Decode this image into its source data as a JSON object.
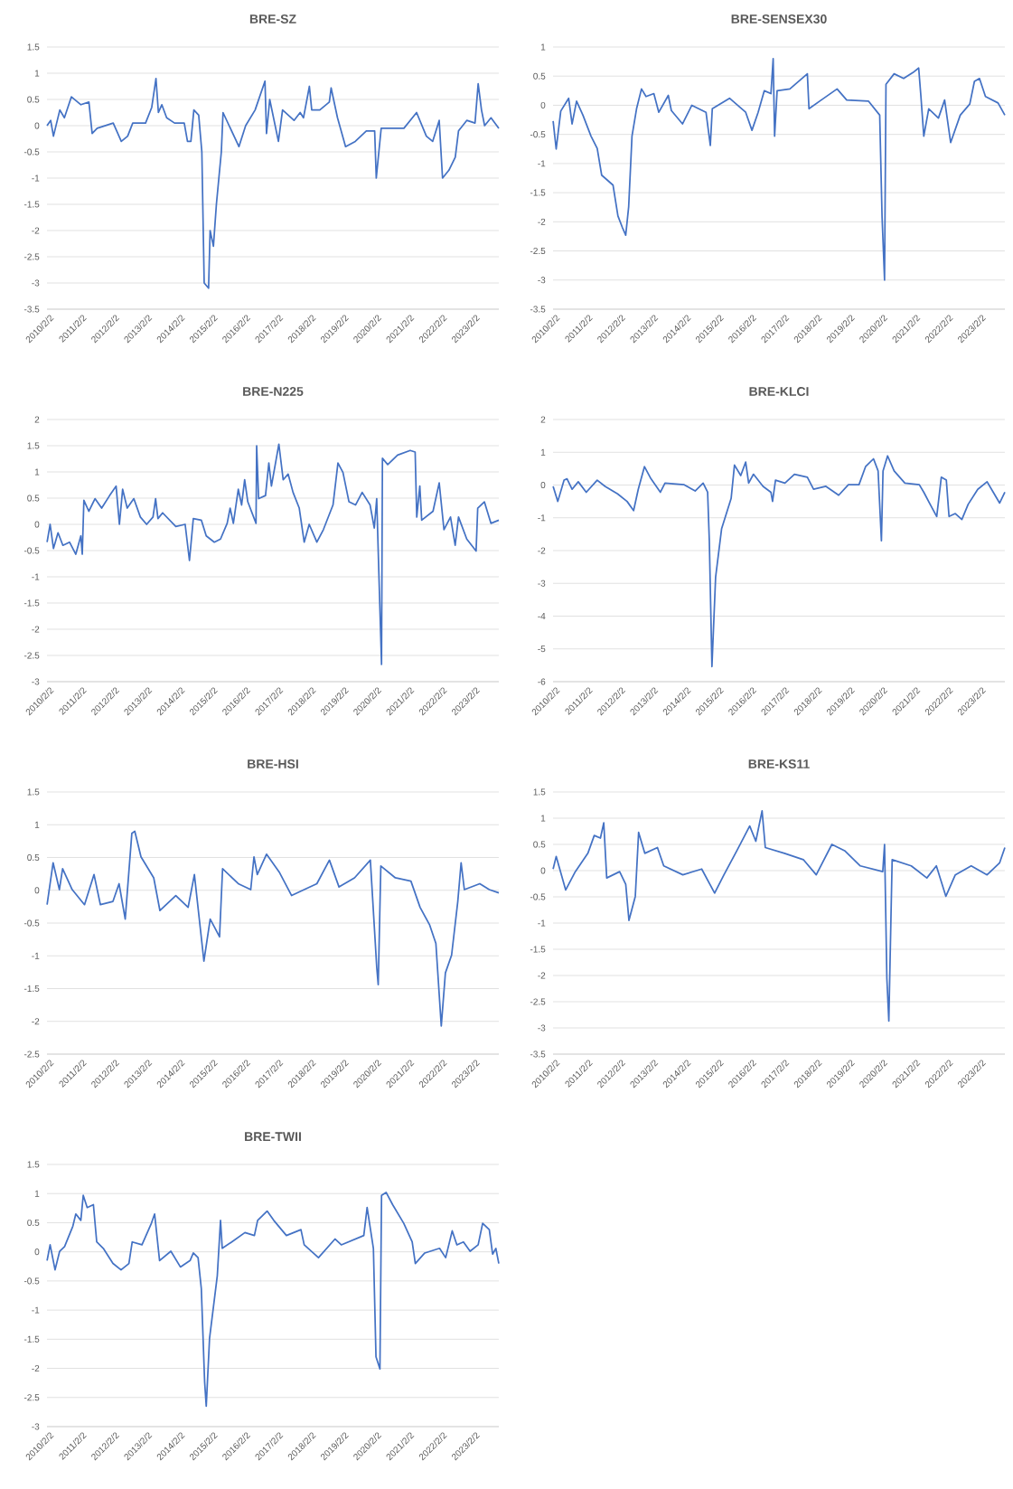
{
  "chart_data": [
    {
      "type": "line",
      "title": "BRE-SZ",
      "grid": "y",
      "xlim": [
        "2010-02-02",
        "2023-11-17"
      ],
      "ylim": [
        -3.5,
        1.5
      ],
      "yticks": [
        -3.5,
        -3,
        -2.5,
        -2,
        -1.5,
        -1,
        -0.5,
        0,
        0.5,
        1,
        1.5
      ],
      "xticks": [
        {
          "value": "2010-02-02",
          "label": "2010/2/2"
        },
        {
          "value": "2011-02-02",
          "label": "2011/2/2"
        },
        {
          "value": "2012-02-02",
          "label": "2012/2/2"
        },
        {
          "value": "2013-02-02",
          "label": "2013/2/2"
        },
        {
          "value": "2014-02-02",
          "label": "2014/2/2"
        },
        {
          "value": "2015-02-02",
          "label": "2015/2/2"
        },
        {
          "value": "2016-02-02",
          "label": "2016/2/2"
        },
        {
          "value": "2017-02-02",
          "label": "2017/2/2"
        },
        {
          "value": "2018-02-02",
          "label": "2018/2/2"
        },
        {
          "value": "2019-02-02",
          "label": "2019/2/2"
        },
        {
          "value": "2020-02-02",
          "label": "2020/2/2"
        },
        {
          "value": "2021-02-02",
          "label": "2021/2/2"
        },
        {
          "value": "2022-02-02",
          "label": "2022/2/2"
        },
        {
          "value": "2023-02-02",
          "label": "2023/2/2"
        }
      ],
      "x": [
        "2010-02-02",
        "2010-03-15",
        "2010-04-15",
        "2010-06-25",
        "2010-08-15",
        "2010-11-01",
        "2011-02-15",
        "2011-05-15",
        "2011-06-20",
        "2011-08-15",
        "2012-02-10",
        "2012-05-10",
        "2012-07-20",
        "2012-09-15",
        "2013-02-05",
        "2013-04-15",
        "2013-06-01",
        "2013-06-28",
        "2013-08-05",
        "2013-09-28",
        "2013-12-25",
        "2014-04-12",
        "2014-05-18",
        "2014-06-25",
        "2014-07-28",
        "2014-09-20",
        "2014-10-25",
        "2014-11-20",
        "2015-01-08",
        "2015-01-25",
        "2015-03-03",
        "2015-04-05",
        "2015-05-30",
        "2015-06-18",
        "2015-12-12",
        "2016-02-25",
        "2016-06-10",
        "2016-09-28",
        "2016-10-15",
        "2016-11-20",
        "2017-02-25",
        "2017-04-12",
        "2017-08-18",
        "2017-10-25",
        "2017-12-01",
        "2018-02-05",
        "2018-03-03",
        "2018-06-01",
        "2018-09-15",
        "2018-10-05",
        "2018-12-15",
        "2019-03-15",
        "2019-07-01",
        "2019-11-01",
        "2020-02-02",
        "2020-02-20",
        "2020-04-15",
        "2020-12-25",
        "2021-05-15",
        "2021-09-01",
        "2021-11-10",
        "2022-01-22",
        "2022-02-28",
        "2022-05-10",
        "2022-07-20",
        "2022-08-25",
        "2022-11-25",
        "2023-02-25",
        "2023-04-01",
        "2023-05-08",
        "2023-06-12",
        "2023-08-22",
        "2023-11-17"
      ],
      "series": [
        {
          "color": "#4472c4",
          "values": [
            0,
            0.1,
            -0.2,
            0.3,
            0.15,
            0.55,
            0.4,
            0.45,
            -0.15,
            -0.05,
            0.05,
            -0.3,
            -0.2,
            0.05,
            0.05,
            0.35,
            0.9,
            0.25,
            0.4,
            0.15,
            0.05,
            0.05,
            -0.3,
            -0.3,
            0.3,
            0.2,
            -0.5,
            -3,
            -3.1,
            -2,
            -2.3,
            -1.5,
            -0.5,
            0.25,
            -0.4,
            0,
            0.3,
            0.85,
            -0.15,
            0.5,
            -0.3,
            0.3,
            0.1,
            0.25,
            0.15,
            0.75,
            0.3,
            0.3,
            0.45,
            0.72,
            0.15,
            -0.4,
            -0.3,
            -0.1,
            -0.1,
            -1,
            -0.05,
            -0.05,
            0.25,
            -0.2,
            -0.3,
            0.1,
            -1,
            -0.85,
            -0.6,
            -0.1,
            0.1,
            0.05,
            0.8,
            0.3,
            0,
            0.15,
            -0.05
          ]
        }
      ]
    },
    {
      "type": "line",
      "title": "BRE-SENSEX30",
      "grid": "y",
      "xlim": [
        "2010-02-02",
        "2023-11-17"
      ],
      "ylim": [
        -3.5,
        1
      ],
      "yticks": [
        -3.5,
        -3,
        -2.5,
        -2,
        -1.5,
        -1,
        -0.5,
        0,
        0.5,
        1
      ],
      "xticks": [
        {
          "value": "2010-02-02",
          "label": "2010/2/2"
        },
        {
          "value": "2011-02-02",
          "label": "2011/2/2"
        },
        {
          "value": "2012-02-02",
          "label": "2012/2/2"
        },
        {
          "value": "2013-02-02",
          "label": "2013/2/2"
        },
        {
          "value": "2014-02-02",
          "label": "2014/2/2"
        },
        {
          "value": "2015-02-02",
          "label": "2015/2/2"
        },
        {
          "value": "2016-02-02",
          "label": "2016/2/2"
        },
        {
          "value": "2017-02-02",
          "label": "2017/2/2"
        },
        {
          "value": "2018-02-02",
          "label": "2018/2/2"
        },
        {
          "value": "2019-02-02",
          "label": "2019/2/2"
        },
        {
          "value": "2020-02-02",
          "label": "2020/2/2"
        },
        {
          "value": "2021-02-02",
          "label": "2021/2/2"
        },
        {
          "value": "2022-02-02",
          "label": "2022/2/2"
        },
        {
          "value": "2023-02-02",
          "label": "2023/2/2"
        }
      ],
      "x": [
        "2010-02-03",
        "2010-03-09",
        "2010-04-29",
        "2010-07-26",
        "2010-09-02",
        "2010-10-22",
        "2011-01-01",
        "2011-04-01",
        "2011-06-09",
        "2011-07-29",
        "2011-12-02",
        "2012-01-26",
        "2012-03-16",
        "2012-04-22",
        "2012-05-25",
        "2012-07-01",
        "2012-08-21",
        "2012-10-15",
        "2012-12-05",
        "2013-03-02",
        "2013-04-26",
        "2013-08-10",
        "2013-09-13",
        "2014-01-15",
        "2014-04-29",
        "2014-10-04",
        "2014-11-21",
        "2014-12-13",
        "2015-06-23",
        "2015-12-20",
        "2016-02-28",
        "2016-05-07",
        "2016-07-15",
        "2016-09-27",
        "2016-10-22",
        "2016-11-07",
        "2016-12-05",
        "2017-04-26",
        "2017-11-07",
        "2017-11-25",
        "2018-04-11",
        "2018-10-04",
        "2019-01-19",
        "2019-09-20",
        "2020-01-22",
        "2020-02-17",
        "2020-03-16",
        "2020-04-01",
        "2020-07-01",
        "2020-10-15",
        "2021-01-26",
        "2021-04-01",
        "2021-04-26",
        "2021-05-28",
        "2021-07-22",
        "2021-11-07",
        "2022-01-15",
        "2022-03-23",
        "2022-07-08",
        "2022-10-22",
        "2022-12-13",
        "2023-02-07",
        "2023-04-15",
        "2023-09-02",
        "2023-11-17"
      ],
      "series": [
        {
          "color": "#4472c4",
          "values": [
            -0.27,
            -0.75,
            -0.1,
            0.12,
            -0.32,
            0.07,
            -0.17,
            -0.53,
            -0.74,
            -1.2,
            -1.37,
            -1.9,
            -2.1,
            -2.23,
            -1.74,
            -0.53,
            -0.06,
            0.28,
            0.15,
            0.2,
            -0.12,
            0.17,
            -0.09,
            -0.32,
            0,
            -0.12,
            -0.69,
            -0.06,
            0.12,
            -0.12,
            -0.43,
            -0.12,
            0.25,
            0.2,
            0.8,
            -0.53,
            0.25,
            0.28,
            0.54,
            -0.06,
            0.09,
            0.28,
            0.09,
            0.07,
            -0.17,
            -1.9,
            -3,
            0.36,
            0.54,
            0.46,
            0.56,
            0.64,
            0.15,
            -0.53,
            -0.06,
            -0.22,
            0.09,
            -0.64,
            -0.17,
            0.02,
            0.41,
            0.46,
            0.15,
            0.04,
            -0.17
          ]
        }
      ]
    },
    {
      "type": "line",
      "title": "BRE-N225",
      "grid": "y",
      "xlim": [
        "2010-02-02",
        "2023-11-17"
      ],
      "ylim": [
        -3,
        2
      ],
      "yticks": [
        -3,
        -2.5,
        -2,
        -1.5,
        -1,
        -0.5,
        0,
        0.5,
        1,
        1.5,
        2
      ],
      "xticks": [
        {
          "value": "2010-02-02",
          "label": "2010/2/2"
        },
        {
          "value": "2011-02-02",
          "label": "2011/2/2"
        },
        {
          "value": "2012-02-02",
          "label": "2012/2/2"
        },
        {
          "value": "2013-02-02",
          "label": "2013/2/2"
        },
        {
          "value": "2014-02-02",
          "label": "2014/2/2"
        },
        {
          "value": "2015-02-02",
          "label": "2015/2/2"
        },
        {
          "value": "2016-02-02",
          "label": "2016/2/2"
        },
        {
          "value": "2017-02-02",
          "label": "2017/2/2"
        },
        {
          "value": "2018-02-02",
          "label": "2018/2/2"
        },
        {
          "value": "2019-02-02",
          "label": "2019/2/2"
        },
        {
          "value": "2020-02-02",
          "label": "2020/2/2"
        },
        {
          "value": "2021-02-02",
          "label": "2021/2/2"
        },
        {
          "value": "2022-02-02",
          "label": "2022/2/2"
        },
        {
          "value": "2023-02-02",
          "label": "2023/2/2"
        }
      ],
      "x": [
        "2010-02-03",
        "2010-03-09",
        "2010-04-15",
        "2010-06-05",
        "2010-07-29",
        "2010-10-11",
        "2010-12-20",
        "2011-02-14",
        "2011-03-02",
        "2011-03-20",
        "2011-05-14",
        "2011-07-22",
        "2011-10-04",
        "2012-01-01",
        "2012-03-13",
        "2012-04-19",
        "2012-05-25",
        "2012-07-15",
        "2012-09-27",
        "2012-12-09",
        "2013-02-17",
        "2013-04-29",
        "2013-05-28",
        "2013-06-23",
        "2013-08-14",
        "2014-01-08",
        "2014-04-22",
        "2014-06-09",
        "2014-07-22",
        "2014-10-19",
        "2014-12-13",
        "2015-03-13",
        "2015-05-21",
        "2015-08-03",
        "2015-09-05",
        "2015-10-11",
        "2015-12-05",
        "2016-01-11",
        "2016-02-14",
        "2016-03-20",
        "2016-06-20",
        "2016-06-27",
        "2016-07-19",
        "2016-10-04",
        "2016-11-10",
        "2016-12-09",
        "2017-03-02",
        "2017-04-19",
        "2017-06-13",
        "2017-08-07",
        "2017-10-15",
        "2017-12-09",
        "2018-02-03",
        "2018-04-29",
        "2018-07-11",
        "2018-10-26",
        "2018-12-20",
        "2019-02-14",
        "2019-04-22",
        "2019-07-04",
        "2019-09-16",
        "2019-12-13",
        "2020-01-29",
        "2020-02-25",
        "2020-03-20",
        "2020-04-19",
        "2020-04-29",
        "2020-06-27",
        "2020-10-15",
        "2021-03-05",
        "2021-04-29",
        "2021-05-17",
        "2021-06-20",
        "2021-07-11",
        "2021-11-14",
        "2022-01-22",
        "2022-03-16",
        "2022-05-28",
        "2022-07-19",
        "2022-08-25",
        "2022-11-25",
        "2023-03-09",
        "2023-03-27",
        "2023-06-09",
        "2023-08-21",
        "2023-11-17"
      ],
      "series": [
        {
          "color": "#4472c4",
          "values": [
            -0.34,
            0,
            -0.46,
            -0.16,
            -0.4,
            -0.34,
            -0.57,
            -0.22,
            -0.57,
            0.46,
            0.25,
            0.49,
            0.31,
            0.55,
            0.73,
            0,
            0.67,
            0.31,
            0.49,
            0.14,
            0,
            0.14,
            0.49,
            0.11,
            0.22,
            -0.04,
            0,
            -0.69,
            0.11,
            0.08,
            -0.22,
            -0.34,
            -0.28,
            0.02,
            0.31,
            0.02,
            0.67,
            0.37,
            0.85,
            0.43,
            0.02,
            1.5,
            0.49,
            0.55,
            1.17,
            0.73,
            1.53,
            0.85,
            0.96,
            0.61,
            0.31,
            -0.34,
            0,
            -0.34,
            -0.1,
            0.37,
            1.17,
            0.99,
            0.43,
            0.37,
            0.61,
            0.37,
            -0.07,
            0.49,
            -0.93,
            -2.67,
            1.26,
            1.14,
            1.32,
            1.41,
            1.38,
            0.14,
            0.73,
            0.08,
            0.25,
            0.79,
            -0.1,
            0.14,
            -0.4,
            0.14,
            -0.28,
            -0.51,
            0.31,
            0.43,
            0.02,
            0.08
          ]
        }
      ]
    },
    {
      "type": "line",
      "title": "BRE-KLCI",
      "grid": "y",
      "xlim": [
        "2010-02-02",
        "2023-11-17"
      ],
      "ylim": [
        -6,
        2
      ],
      "yticks": [
        -6,
        -5,
        -4,
        -3,
        -2,
        -1,
        0,
        1,
        2
      ],
      "xticks": [
        {
          "value": "2010-02-02",
          "label": "2010/2/2"
        },
        {
          "value": "2011-02-02",
          "label": "2011/2/2"
        },
        {
          "value": "2012-02-02",
          "label": "2012/2/2"
        },
        {
          "value": "2013-02-02",
          "label": "2013/2/2"
        },
        {
          "value": "2014-02-02",
          "label": "2014/2/2"
        },
        {
          "value": "2015-02-02",
          "label": "2015/2/2"
        },
        {
          "value": "2016-02-02",
          "label": "2016/2/2"
        },
        {
          "value": "2017-02-02",
          "label": "2017/2/2"
        },
        {
          "value": "2018-02-02",
          "label": "2018/2/2"
        },
        {
          "value": "2019-02-02",
          "label": "2019/2/2"
        },
        {
          "value": "2020-02-02",
          "label": "2020/2/2"
        },
        {
          "value": "2021-02-02",
          "label": "2021/2/2"
        },
        {
          "value": "2022-02-02",
          "label": "2022/2/2"
        },
        {
          "value": "2023-02-02",
          "label": "2023/2/2"
        }
      ],
      "x": [
        "2010-02-03",
        "2010-03-27",
        "2010-06-05",
        "2010-07-08",
        "2010-09-02",
        "2010-11-10",
        "2011-02-07",
        "2011-06-09",
        "2011-09-05",
        "2012-01-22",
        "2012-05-07",
        "2012-07-19",
        "2012-09-09",
        "2012-11-17",
        "2013-01-29",
        "2013-05-14",
        "2013-07-04",
        "2014-02-03",
        "2014-06-05",
        "2014-09-02",
        "2014-10-22",
        "2014-11-10",
        "2014-12-09",
        "2015-01-01",
        "2015-01-19",
        "2015-03-27",
        "2015-07-11",
        "2015-08-17",
        "2015-10-26",
        "2015-12-20",
        "2016-01-22",
        "2016-03-16",
        "2016-07-01",
        "2016-09-27",
        "2016-10-15",
        "2016-11-17",
        "2017-03-02",
        "2017-06-16",
        "2017-11-07",
        "2018-01-15",
        "2018-06-02",
        "2018-10-22",
        "2019-02-07",
        "2019-06-05",
        "2019-08-17",
        "2019-11-14",
        "2020-01-04",
        "2020-02-10",
        "2020-02-28",
        "2020-04-19",
        "2020-07-01",
        "2020-10-29",
        "2021-04-08",
        "2021-05-28",
        "2021-08-07",
        "2021-10-19",
        "2021-12-09",
        "2022-02-03",
        "2022-03-05",
        "2022-05-14",
        "2022-07-26",
        "2022-10-04",
        "2023-01-19",
        "2023-05-03",
        "2023-07-11",
        "2023-09-20",
        "2023-11-17"
      ],
      "series": [
        {
          "color": "#4472c4",
          "values": [
            -0.04,
            -0.5,
            0.15,
            0.19,
            -0.13,
            0.1,
            -0.22,
            0.15,
            -0.04,
            -0.27,
            -0.5,
            -0.78,
            -0.13,
            0.56,
            0.19,
            -0.22,
            0.06,
            0.01,
            -0.18,
            0.06,
            -0.22,
            -1.7,
            -5.54,
            -4.01,
            -2.81,
            -1.33,
            -0.41,
            0.61,
            0.29,
            0.7,
            0.06,
            0.33,
            -0.04,
            -0.22,
            -0.5,
            0.15,
            0.06,
            0.33,
            0.24,
            -0.13,
            -0.04,
            -0.31,
            0.01,
            0.01,
            0.56,
            0.8,
            0.43,
            -1.7,
            0.43,
            0.89,
            0.43,
            0.06,
            0.01,
            -0.22,
            -0.59,
            -0.96,
            0.24,
            0.15,
            -0.96,
            -0.87,
            -1.05,
            -0.59,
            -0.13,
            0.1,
            -0.22,
            -0.55,
            -0.22
          ]
        }
      ]
    },
    {
      "type": "line",
      "title": "BRE-HSI",
      "grid": "y",
      "xlim": [
        "2010-02-02",
        "2023-11-17"
      ],
      "ylim": [
        -2.5,
        1.5
      ],
      "yticks": [
        -2.5,
        -2,
        -1.5,
        -1,
        -0.5,
        0,
        0.5,
        1,
        1.5
      ],
      "xticks": [
        {
          "value": "2010-02-02",
          "label": "2010/2/2"
        },
        {
          "value": "2011-02-02",
          "label": "2011/2/2"
        },
        {
          "value": "2012-02-02",
          "label": "2012/2/2"
        },
        {
          "value": "2013-02-02",
          "label": "2013/2/2"
        },
        {
          "value": "2014-02-02",
          "label": "2014/2/2"
        },
        {
          "value": "2015-02-02",
          "label": "2015/2/2"
        },
        {
          "value": "2016-02-02",
          "label": "2016/2/2"
        },
        {
          "value": "2017-02-02",
          "label": "2017/2/2"
        },
        {
          "value": "2018-02-02",
          "label": "2018/2/2"
        },
        {
          "value": "2019-02-02",
          "label": "2019/2/2"
        },
        {
          "value": "2020-02-02",
          "label": "2020/2/2"
        },
        {
          "value": "2021-02-02",
          "label": "2021/2/2"
        },
        {
          "value": "2022-02-02",
          "label": "2022/2/2"
        },
        {
          "value": "2023-02-02",
          "label": "2023/2/2"
        }
      ],
      "x": [
        "2010-02-03",
        "2010-04-11",
        "2010-06-20",
        "2010-07-26",
        "2010-11-10",
        "2011-03-27",
        "2011-07-11",
        "2011-09-20",
        "2012-02-07",
        "2012-04-15",
        "2012-06-23",
        "2012-09-05",
        "2012-10-08",
        "2012-12-16",
        "2013-05-07",
        "2013-07-15",
        "2014-01-08",
        "2014-05-25",
        "2014-08-03",
        "2014-11-17",
        "2015-01-26",
        "2015-05-10",
        "2015-06-13",
        "2015-12-05",
        "2016-04-22",
        "2016-05-28",
        "2016-07-04",
        "2016-10-15",
        "2017-03-05",
        "2017-07-22",
        "2017-12-09",
        "2018-04-29",
        "2018-09-16",
        "2019-01-01",
        "2019-06-23",
        "2019-12-16",
        "2020-02-25",
        "2020-03-13",
        "2020-04-11",
        "2020-09-20",
        "2021-03-13",
        "2021-06-23",
        "2021-10-08",
        "2021-12-16",
        "2022-02-14",
        "2022-04-01",
        "2022-06-09",
        "2022-08-17",
        "2022-09-23",
        "2022-10-29",
        "2023-04-19",
        "2023-08-03",
        "2023-11-17"
      ],
      "series": [
        {
          "color": "#4472c4",
          "values": [
            -0.22,
            0.42,
            0.01,
            0.33,
            0.01,
            -0.22,
            0.24,
            -0.22,
            -0.17,
            0.1,
            -0.44,
            0.87,
            0.9,
            0.51,
            0.19,
            -0.31,
            -0.08,
            -0.26,
            0.24,
            -1.08,
            -0.44,
            -0.71,
            0.33,
            0.1,
            0.01,
            0.51,
            0.24,
            0.55,
            0.28,
            -0.08,
            0.01,
            0.1,
            0.46,
            0.05,
            0.19,
            0.46,
            -1.17,
            -1.44,
            0.37,
            0.19,
            0.14,
            -0.26,
            -0.53,
            -0.81,
            -2.07,
            -1.26,
            -0.99,
            -0.17,
            0.42,
            0.01,
            0.1,
            0.01,
            -0.04
          ]
        }
      ]
    },
    {
      "type": "line",
      "title": "BRE-KS11",
      "grid": "y",
      "xlim": [
        "2010-02-02",
        "2023-11-17"
      ],
      "ylim": [
        -3.5,
        1.5
      ],
      "yticks": [
        -3.5,
        -3,
        -2.5,
        -2,
        -1.5,
        -1,
        -0.5,
        0,
        0.5,
        1,
        1.5
      ],
      "xticks": [
        {
          "value": "2010-02-02",
          "label": "2010/2/2"
        },
        {
          "value": "2011-02-02",
          "label": "2011/2/2"
        },
        {
          "value": "2012-02-02",
          "label": "2012/2/2"
        },
        {
          "value": "2013-02-02",
          "label": "2013/2/2"
        },
        {
          "value": "2014-02-02",
          "label": "2014/2/2"
        },
        {
          "value": "2015-02-02",
          "label": "2015/2/2"
        },
        {
          "value": "2016-02-02",
          "label": "2016/2/2"
        },
        {
          "value": "2017-02-02",
          "label": "2017/2/2"
        },
        {
          "value": "2018-02-02",
          "label": "2018/2/2"
        },
        {
          "value": "2019-02-02",
          "label": "2019/2/2"
        },
        {
          "value": "2020-02-02",
          "label": "2020/2/2"
        },
        {
          "value": "2021-02-02",
          "label": "2021/2/2"
        },
        {
          "value": "2022-02-02",
          "label": "2022/2/2"
        },
        {
          "value": "2023-02-02",
          "label": "2023/2/2"
        }
      ],
      "x": [
        "2010-02-03",
        "2010-03-09",
        "2010-06-23",
        "2010-10-08",
        "2011-02-25",
        "2011-05-07",
        "2011-07-15",
        "2011-08-21",
        "2011-09-23",
        "2012-02-14",
        "2012-04-22",
        "2012-05-28",
        "2012-08-07",
        "2012-09-13",
        "2012-11-21",
        "2013-04-11",
        "2013-06-20",
        "2014-01-19",
        "2014-08-17",
        "2015-01-08",
        "2015-04-22",
        "2015-09-13",
        "2016-02-03",
        "2016-04-11",
        "2016-06-20",
        "2016-07-26",
        "2017-02-25",
        "2017-09-23",
        "2018-02-14",
        "2018-08-07",
        "2018-12-27",
        "2019-06-20",
        "2020-02-25",
        "2020-03-16",
        "2020-04-11",
        "2020-05-03",
        "2020-06-09",
        "2021-01-08",
        "2021-07-01",
        "2021-10-15",
        "2022-01-29",
        "2022-05-14",
        "2022-11-07",
        "2023-05-03",
        "2023-09-20",
        "2023-11-17"
      ],
      "series": [
        {
          "color": "#4472c4",
          "values": [
            0.03,
            0.27,
            -0.37,
            -0.02,
            0.33,
            0.67,
            0.62,
            0.91,
            -0.14,
            -0.02,
            -0.26,
            -0.95,
            -0.49,
            0.73,
            0.33,
            0.44,
            0.09,
            -0.08,
            0.03,
            -0.43,
            -0.08,
            0.38,
            0.85,
            0.56,
            1.14,
            0.44,
            0.33,
            0.21,
            -0.08,
            0.5,
            0.38,
            0.09,
            -0.02,
            0.5,
            -2.06,
            -2.87,
            0.21,
            0.09,
            -0.14,
            0.09,
            -0.49,
            -0.08,
            0.09,
            -0.08,
            0.15,
            0.44
          ]
        }
      ]
    },
    {
      "type": "line",
      "title": "BRE-TWII",
      "grid": "y",
      "xlim": [
        "2010-02-02",
        "2023-11-17"
      ],
      "ylim": [
        -3,
        1.5
      ],
      "yticks": [
        -3,
        -2.5,
        -2,
        -1.5,
        -1,
        -0.5,
        0,
        0.5,
        1,
        1.5
      ],
      "xticks": [
        {
          "value": "2010-02-02",
          "label": "2010/2/2"
        },
        {
          "value": "2011-02-02",
          "label": "2011/2/2"
        },
        {
          "value": "2012-02-02",
          "label": "2012/2/2"
        },
        {
          "value": "2013-02-02",
          "label": "2013/2/2"
        },
        {
          "value": "2014-02-02",
          "label": "2014/2/2"
        },
        {
          "value": "2015-02-02",
          "label": "2015/2/2"
        },
        {
          "value": "2016-02-02",
          "label": "2016/2/2"
        },
        {
          "value": "2017-02-02",
          "label": "2017/2/2"
        },
        {
          "value": "2018-02-02",
          "label": "2018/2/2"
        },
        {
          "value": "2019-02-02",
          "label": "2019/2/2"
        },
        {
          "value": "2020-02-02",
          "label": "2020/2/2"
        },
        {
          "value": "2021-02-02",
          "label": "2021/2/2"
        },
        {
          "value": "2022-02-02",
          "label": "2022/2/2"
        },
        {
          "value": "2023-02-02",
          "label": "2023/2/2"
        }
      ],
      "x": [
        "2010-02-03",
        "2010-03-09",
        "2010-05-03",
        "2010-06-23",
        "2010-08-17",
        "2010-11-17",
        "2010-12-20",
        "2011-02-14",
        "2011-03-13",
        "2011-04-26",
        "2011-07-04",
        "2011-08-10",
        "2011-10-22",
        "2012-02-07",
        "2012-05-07",
        "2012-08-03",
        "2012-09-09",
        "2012-12-27",
        "2013-04-11",
        "2013-05-17",
        "2013-07-11",
        "2013-11-14",
        "2014-02-28",
        "2014-06-16",
        "2014-07-22",
        "2014-09-13",
        "2014-10-19",
        "2014-11-25",
        "2014-12-13",
        "2015-01-19",
        "2015-04-15",
        "2015-05-21",
        "2015-06-09",
        "2015-09-23",
        "2016-02-17",
        "2016-06-02",
        "2016-07-08",
        "2016-10-22",
        "2017-01-04",
        "2017-05-25",
        "2017-11-03",
        "2017-12-09",
        "2018-05-17",
        "2018-11-17",
        "2019-01-26",
        "2019-10-04",
        "2019-11-10",
        "2020-01-19",
        "2020-02-17",
        "2020-04-01",
        "2020-04-19",
        "2020-06-09",
        "2020-08-21",
        "2020-12-23",
        "2021-03-27",
        "2021-05-01",
        "2021-08-14",
        "2022-01-26",
        "2022-04-04",
        "2022-06-16",
        "2022-08-07",
        "2022-10-19",
        "2023-01-01",
        "2023-04-01",
        "2023-05-21",
        "2023-08-03",
        "2023-09-09",
        "2023-10-15",
        "2023-11-17"
      ],
      "series": [
        {
          "color": "#4472c4",
          "values": [
            -0.15,
            0.12,
            -0.31,
            0.01,
            0.09,
            0.44,
            0.65,
            0.54,
            0.97,
            0.76,
            0.81,
            0.17,
            0.06,
            -0.2,
            -0.31,
            -0.2,
            0.17,
            0.12,
            0.49,
            0.65,
            -0.15,
            0.01,
            -0.26,
            -0.15,
            -0.02,
            -0.1,
            -0.63,
            -2.23,
            -2.65,
            -1.48,
            -0.41,
            0.54,
            0.06,
            0.17,
            0.33,
            0.28,
            0.54,
            0.7,
            0.54,
            0.28,
            0.38,
            0.12,
            -0.1,
            0.22,
            0.12,
            0.28,
            0.76,
            0.06,
            -1.8,
            -2.01,
            0.97,
            1.02,
            0.81,
            0.49,
            0.17,
            -0.2,
            -0.02,
            0.06,
            -0.1,
            0.36,
            0.12,
            0.17,
            0.01,
            0.12,
            0.49,
            0.38,
            -0.04,
            0.06,
            -0.2
          ]
        }
      ]
    }
  ]
}
